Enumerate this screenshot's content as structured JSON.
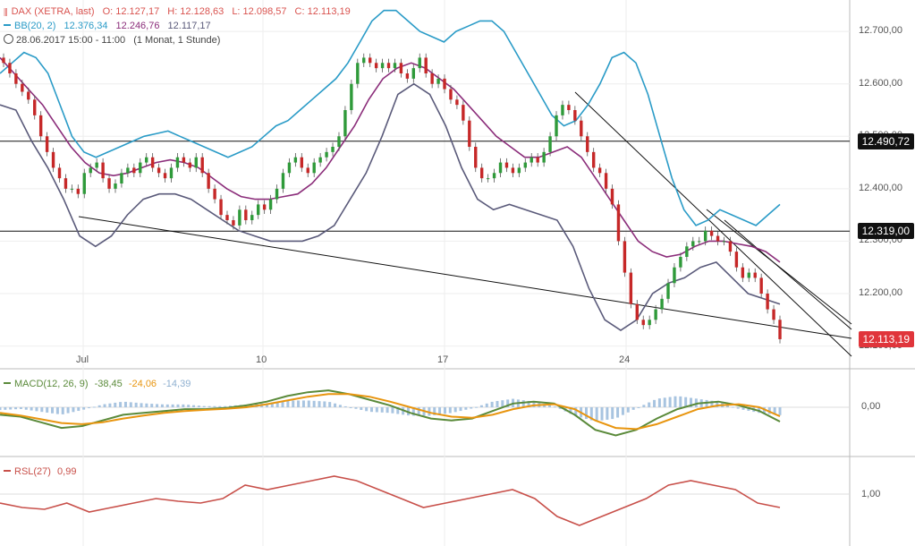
{
  "legend": {
    "main": {
      "name": "DAX (XETRA, last)",
      "o": "O: 12.127,17",
      "h": "H: 12.128,63",
      "l": "L: 12.098,57",
      "c": "C: 12.113,19",
      "color": "#d9534f"
    },
    "bb": {
      "name": "BB(20, 2)",
      "upper": "12.376,34",
      "mid": "12.246,76",
      "lower": "12.117,17",
      "color_upper": "#2a9bc7",
      "color_mid": "#8b2d7a",
      "color_lower": "#5a5a7a"
    },
    "range": "28.06.2017 15:00 - 11:00",
    "interval": "(1 Monat, 1 Stunde)",
    "macd": {
      "name": "MACD(12, 26, 9)",
      "v1": "-38,45",
      "v2": "-24,06",
      "v3": "-14,39",
      "color_macd": "#5a8a3a",
      "color_signal": "#e8950f",
      "color_hist": "#a8c4e0"
    },
    "rsl": {
      "name": "RSL(27)",
      "v": "0,99",
      "color": "#c8504a"
    }
  },
  "price_axis": {
    "ticks": [
      "12.700,00",
      "12.600,00",
      "12.500,00",
      "12.400,00",
      "12.300,00",
      "12.200,00",
      "12.100,00"
    ],
    "tick_values": [
      12700,
      12600,
      12500,
      12400,
      12300,
      12200,
      12100
    ]
  },
  "price_tags": [
    {
      "label": "12.490,72",
      "value": 12490.72,
      "bg": "#111111",
      "fg": "#ffffff"
    },
    {
      "label": "12.319,00",
      "value": 12319,
      "bg": "#111111",
      "fg": "#ffffff"
    },
    {
      "label": "12.113,19",
      "value": 12113.19,
      "bg": "#e0353b",
      "fg": "#ffffff"
    }
  ],
  "macd_axis": {
    "label": "0,00",
    "value": 0
  },
  "rsl_axis": {
    "label": "1,00",
    "value": 1.0
  },
  "x_axis": {
    "labels": [
      "Jul",
      "10",
      "17",
      "24"
    ]
  },
  "chart_data": {
    "type": "candlestick",
    "title": "",
    "symbol": "DAX (XETRA, last)",
    "ylim": [
      12060,
      12760
    ],
    "horizontal_lines": [
      12490.72,
      12319.0
    ],
    "last_price": 12113.19,
    "candles_close": [
      12640,
      12620,
      12600,
      12585,
      12570,
      12540,
      12500,
      12470,
      12440,
      12420,
      12400,
      12400,
      12390,
      12430,
      12440,
      12450,
      12420,
      12400,
      12410,
      12430,
      12440,
      12430,
      12450,
      12460,
      12440,
      12430,
      12420,
      12440,
      12460,
      12450,
      12440,
      12460,
      12430,
      12400,
      12380,
      12350,
      12340,
      12330,
      12360,
      12340,
      12350,
      12370,
      12360,
      12380,
      12400,
      12430,
      12450,
      12460,
      12440,
      12430,
      12450,
      12460,
      12470,
      12480,
      12500,
      12550,
      12600,
      12640,
      12650,
      12640,
      12630,
      12640,
      12630,
      12640,
      12620,
      12610,
      12630,
      12650,
      12620,
      12600,
      12610,
      12590,
      12570,
      12560,
      12530,
      12480,
      12440,
      12420,
      12420,
      12430,
      12450,
      12440,
      12430,
      12440,
      12450,
      12460,
      12450,
      12470,
      12500,
      12540,
      12560,
      12550,
      12530,
      12500,
      12470,
      12440,
      12430,
      12400,
      12370,
      12300,
      12240,
      12180,
      12150,
      12140,
      12150,
      12170,
      12190,
      12220,
      12250,
      12270,
      12290,
      12300,
      12300,
      12320,
      12310,
      12300,
      12300,
      12280,
      12250,
      12230,
      12240,
      12230,
      12200,
      12170,
      12150,
      12113
    ],
    "bb_upper": [
      12620,
      12640,
      12660,
      12650,
      12620,
      12560,
      12500,
      12470,
      12460,
      12470,
      12480,
      12490,
      12500,
      12505,
      12510,
      12500,
      12490,
      12480,
      12470,
      12460,
      12470,
      12480,
      12500,
      12520,
      12530,
      12550,
      12570,
      12590,
      12610,
      12640,
      12680,
      12720,
      12740,
      12740,
      12720,
      12700,
      12690,
      12680,
      12700,
      12710,
      12720,
      12720,
      12700,
      12660,
      12620,
      12580,
      12540,
      12520,
      12530,
      12560,
      12600,
      12650,
      12660,
      12640,
      12580,
      12500,
      12420,
      12360,
      12330,
      12340,
      12360,
      12350,
      12340,
      12330,
      12350,
      12370
    ],
    "bb_mid": [
      12650,
      12620,
      12590,
      12560,
      12520,
      12480,
      12450,
      12430,
      12425,
      12430,
      12440,
      12450,
      12455,
      12450,
      12440,
      12420,
      12400,
      12385,
      12380,
      12380,
      12385,
      12390,
      12410,
      12440,
      12480,
      12520,
      12570,
      12610,
      12630,
      12640,
      12630,
      12610,
      12590,
      12560,
      12530,
      12500,
      12480,
      12460,
      12460,
      12470,
      12480,
      12460,
      12420,
      12380,
      12340,
      12300,
      12280,
      12270,
      12275,
      12290,
      12300,
      12300,
      12295,
      12290,
      12280,
      12260
    ],
    "bb_lower": [
      12560,
      12550,
      12490,
      12440,
      12380,
      12310,
      12290,
      12310,
      12350,
      12380,
      12390,
      12390,
      12380,
      12360,
      12340,
      12320,
      12310,
      12300,
      12300,
      12300,
      12310,
      12330,
      12380,
      12430,
      12500,
      12580,
      12600,
      12580,
      12520,
      12440,
      12380,
      12360,
      12370,
      12360,
      12350,
      12340,
      12290,
      12210,
      12150,
      12130,
      12150,
      12200,
      12220,
      12230,
      12250,
      12260,
      12230,
      12200,
      12190,
      12180
    ],
    "macd": [
      -20,
      -25,
      -40,
      -55,
      -50,
      -35,
      -20,
      -15,
      -10,
      -5,
      -5,
      -2,
      5,
      15,
      30,
      40,
      45,
      35,
      20,
      5,
      -15,
      -30,
      -35,
      -30,
      -10,
      10,
      15,
      10,
      -20,
      -60,
      -75,
      -60,
      -30,
      -5,
      10,
      15,
      5,
      -10,
      -38
    ],
    "signal": [
      -15,
      -22,
      -32,
      -42,
      -45,
      -40,
      -30,
      -22,
      -15,
      -10,
      -7,
      -4,
      0,
      8,
      18,
      28,
      35,
      35,
      28,
      15,
      0,
      -15,
      -25,
      -28,
      -20,
      -5,
      5,
      8,
      -5,
      -35,
      -55,
      -58,
      -45,
      -25,
      -5,
      5,
      8,
      0,
      -24
    ],
    "rsl": [
      0.99,
      0.985,
      0.983,
      0.99,
      0.98,
      0.985,
      0.99,
      0.995,
      0.992,
      0.99,
      0.995,
      1.01,
      1.005,
      1.01,
      1.015,
      1.02,
      1.015,
      1.005,
      0.995,
      0.985,
      0.99,
      0.995,
      1.0,
      1.005,
      0.995,
      0.975,
      0.965,
      0.975,
      0.985,
      0.995,
      1.01,
      1.015,
      1.01,
      1.005,
      0.99,
      0.985
    ]
  }
}
